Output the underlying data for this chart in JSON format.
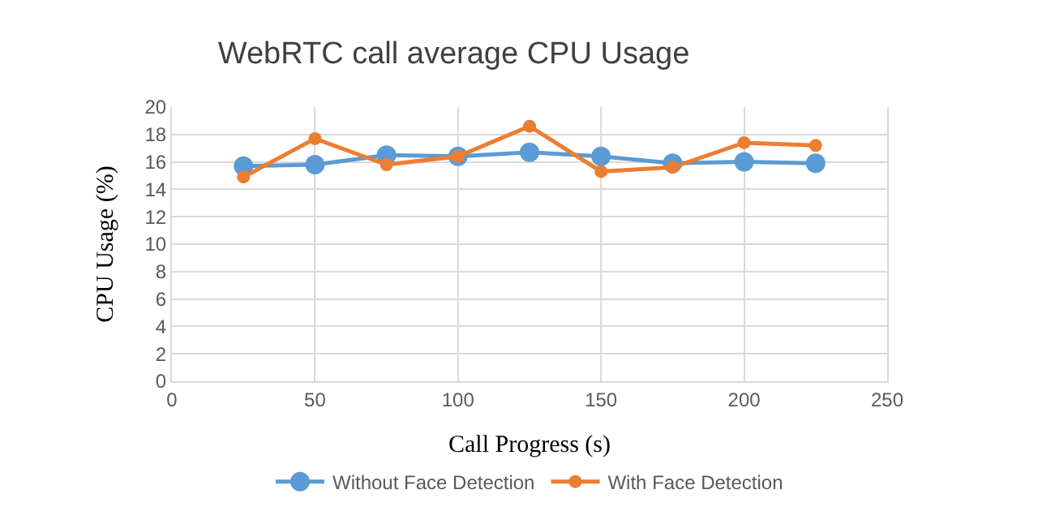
{
  "chart_data": {
    "type": "line",
    "title": "WebRTC call average CPU Usage",
    "xlabel": "Call Progress (s)",
    "ylabel": "CPU Usage (%)",
    "x": [
      25,
      50,
      75,
      100,
      125,
      150,
      175,
      200,
      225
    ],
    "series": [
      {
        "name": "Without Face Detection",
        "color": "#5b9bd5",
        "values": [
          15.7,
          15.8,
          16.5,
          16.4,
          16.7,
          16.4,
          15.9,
          16.0,
          15.9
        ]
      },
      {
        "name": "With Face Detection",
        "color": "#ed7d31",
        "values": [
          14.9,
          17.7,
          15.8,
          16.4,
          18.6,
          15.3,
          15.6,
          17.4,
          17.2
        ]
      }
    ],
    "xlim": [
      0,
      250
    ],
    "xticks": [
      0,
      50,
      100,
      150,
      200,
      250
    ],
    "ylim": [
      0,
      20
    ],
    "yticks": [
      0,
      2,
      4,
      6,
      8,
      10,
      12,
      14,
      16,
      18,
      20
    ],
    "grid": true,
    "legend": "bottom",
    "marker": "circle",
    "line_style": "solid"
  }
}
